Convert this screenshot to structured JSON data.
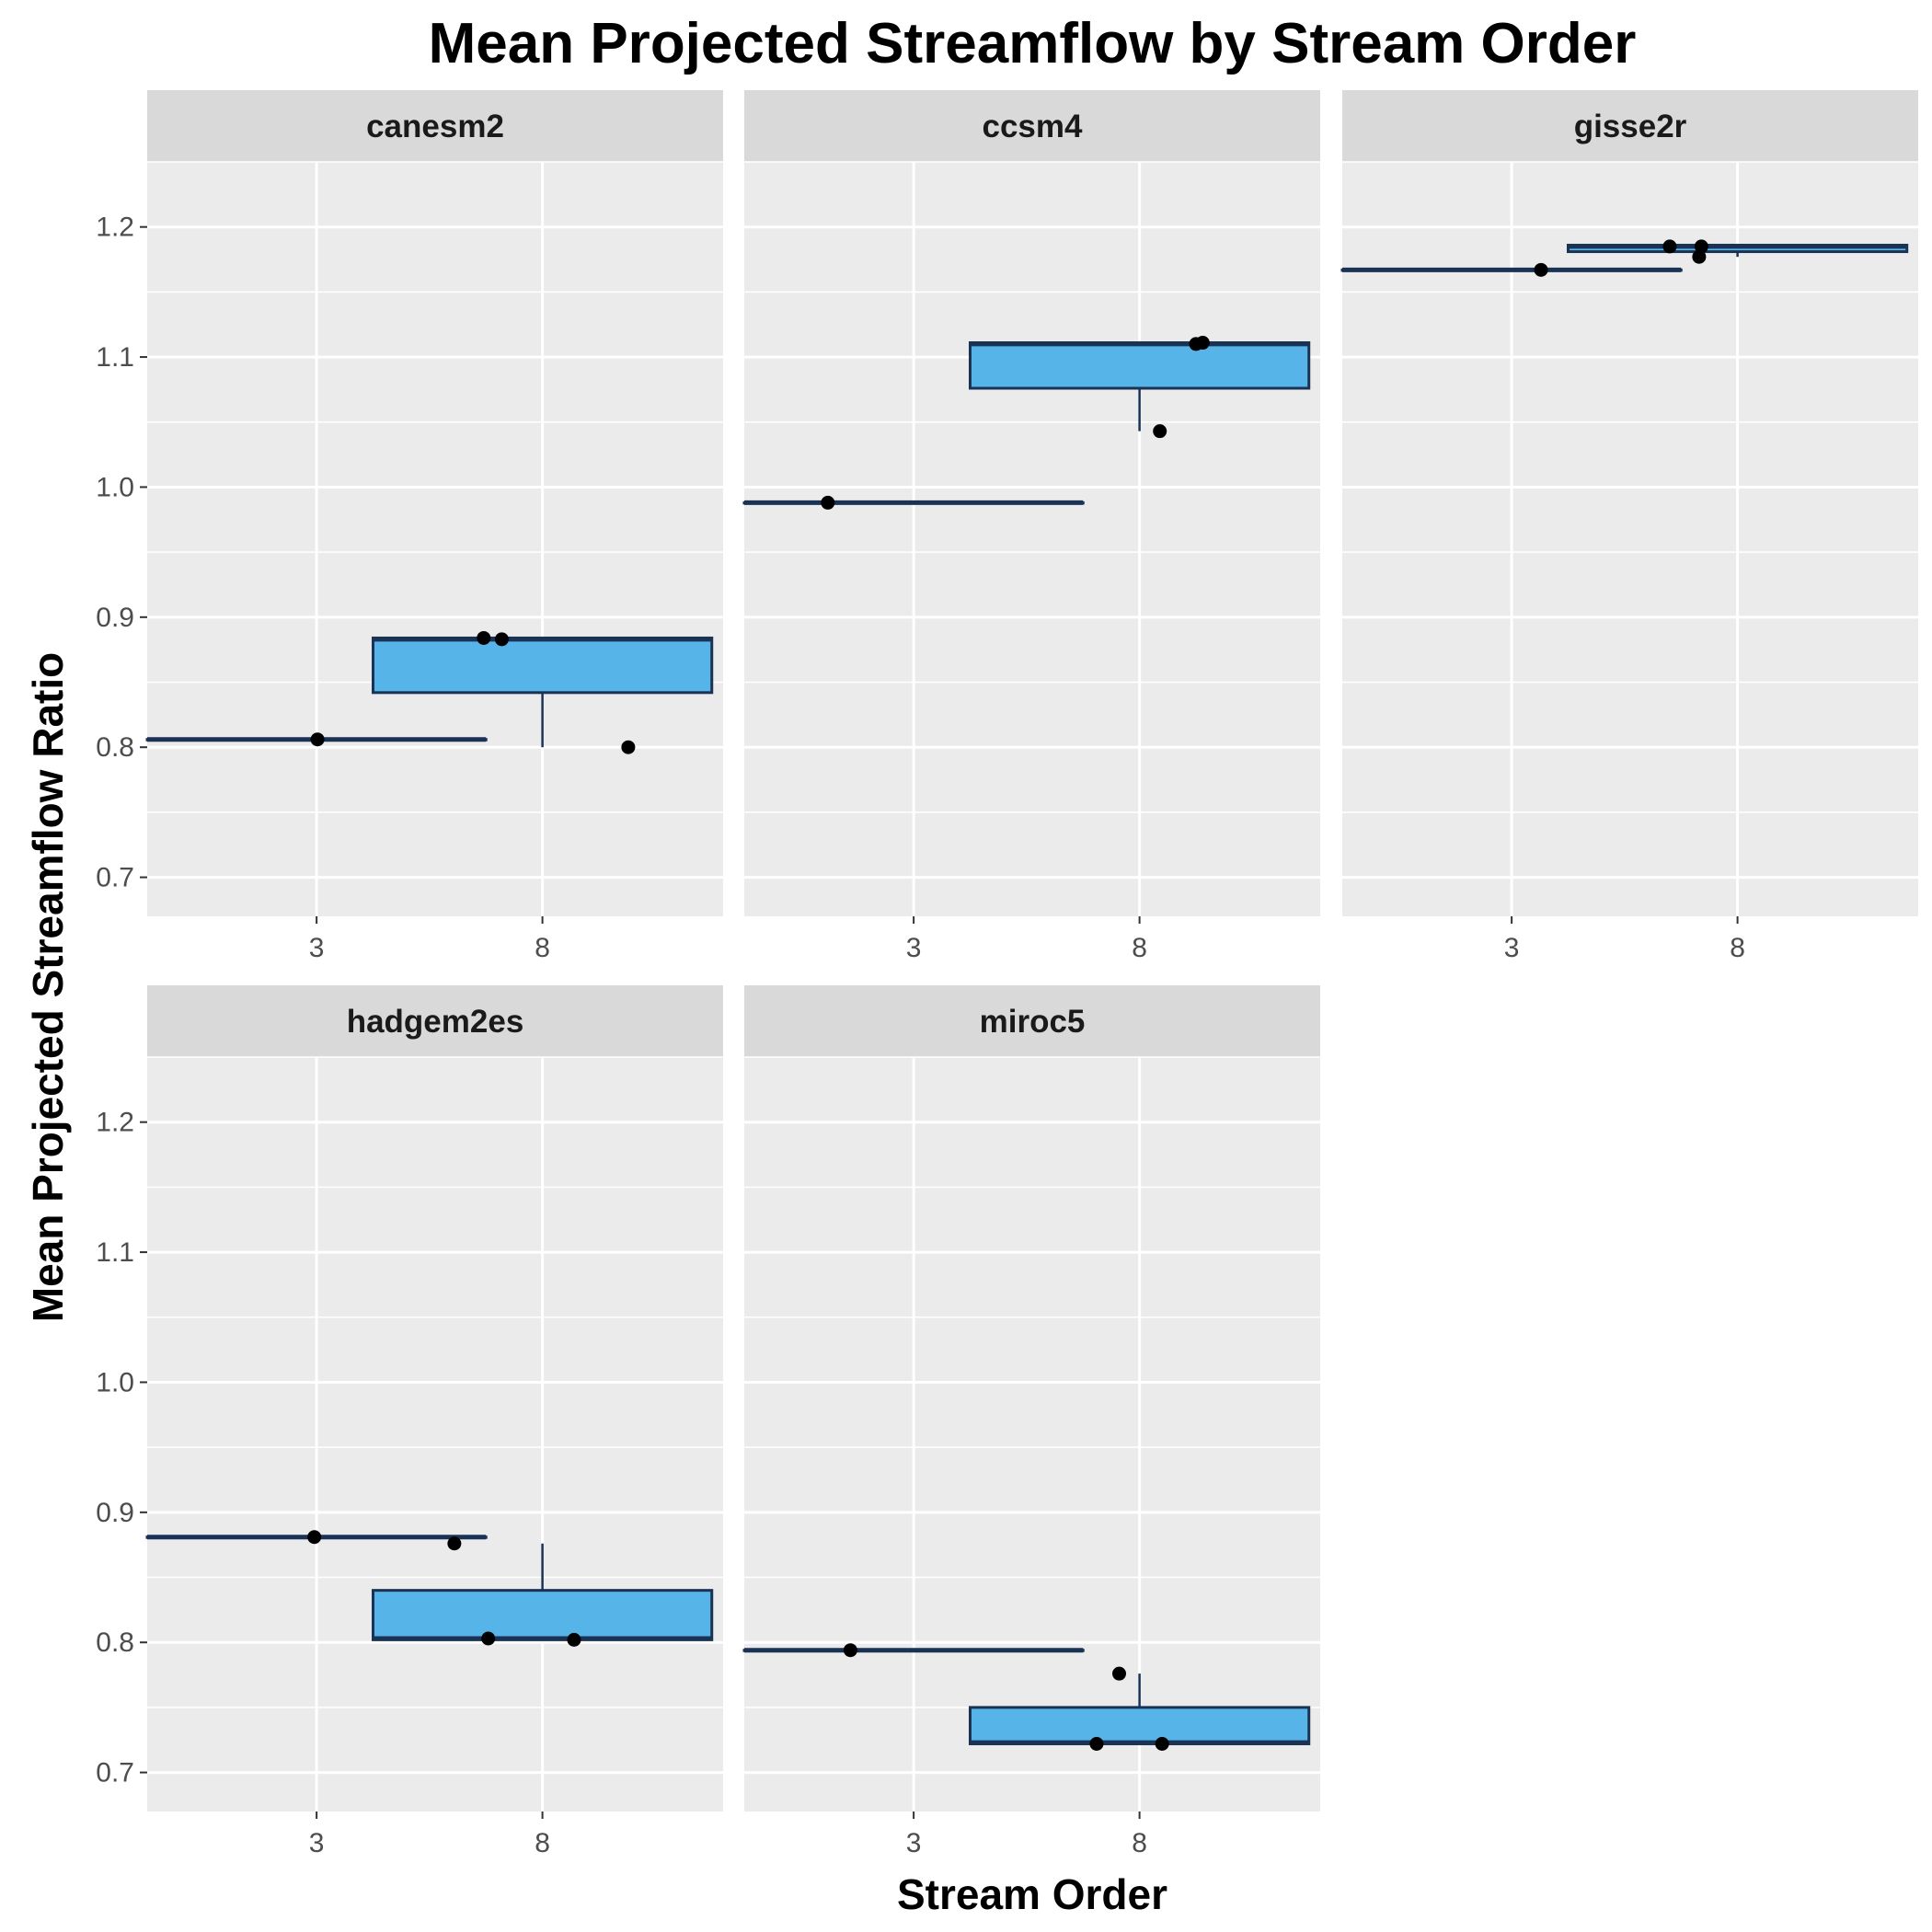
{
  "chart_data": {
    "type": "boxplot",
    "title": "Mean Projected Streamflow by Stream Order",
    "xlabel": "Stream Order",
    "ylabel": "Mean Projected Streamflow Ratio",
    "x_categories": [
      "3",
      "8"
    ],
    "ylim": [
      0.7,
      1.2
    ],
    "y_ticks": [
      "0.7",
      "0.8",
      "0.9",
      "1.0",
      "1.1",
      "1.2"
    ],
    "grid": true,
    "facet_layout": {
      "columns": 3,
      "rows": 2
    },
    "colors": {
      "box_fill": "#56B4E9",
      "box_line": "#1a3355",
      "point": "#000000",
      "panel_bg": "#ebebeb",
      "strip_bg": "#d9d9d9"
    },
    "panels": [
      {
        "name": "canesm2",
        "groups": [
          {
            "x": "3",
            "min": 0.806,
            "q1": 0.806,
            "median": 0.806,
            "q3": 0.806,
            "max": 0.806,
            "points": [
              {
                "x": 3.02,
                "y": 0.806
              }
            ]
          },
          {
            "x": "8",
            "min": 0.8,
            "q1": 0.842,
            "median": 0.883,
            "q3": 0.884,
            "max": 0.884,
            "points": [
              {
                "x": 6.7,
                "y": 0.884
              },
              {
                "x": 7.1,
                "y": 0.883
              },
              {
                "x": 9.9,
                "y": 0.8
              }
            ]
          }
        ]
      },
      {
        "name": "ccsm4",
        "groups": [
          {
            "x": "3",
            "min": 0.988,
            "q1": 0.988,
            "median": 0.988,
            "q3": 0.988,
            "max": 0.988,
            "points": [
              {
                "x": 1.1,
                "y": 0.988
              }
            ]
          },
          {
            "x": "8",
            "min": 1.043,
            "q1": 1.076,
            "median": 1.11,
            "q3": 1.111,
            "max": 1.111,
            "points": [
              {
                "x": 8.45,
                "y": 1.043
              },
              {
                "x": 9.25,
                "y": 1.11
              },
              {
                "x": 9.4,
                "y": 1.111
              }
            ]
          }
        ]
      },
      {
        "name": "gisse2r",
        "groups": [
          {
            "x": "3",
            "min": 1.167,
            "q1": 1.167,
            "median": 1.167,
            "q3": 1.167,
            "max": 1.167,
            "points": [
              {
                "x": 3.65,
                "y": 1.167
              }
            ]
          },
          {
            "x": "8",
            "min": 1.177,
            "q1": 1.181,
            "median": 1.185,
            "q3": 1.186,
            "max": 1.186,
            "points": [
              {
                "x": 6.5,
                "y": 1.185
              },
              {
                "x": 7.15,
                "y": 1.177
              },
              {
                "x": 7.2,
                "y": 1.185
              }
            ]
          }
        ]
      },
      {
        "name": "hadgem2es",
        "groups": [
          {
            "x": "3",
            "min": 0.881,
            "q1": 0.881,
            "median": 0.881,
            "q3": 0.881,
            "max": 0.881,
            "points": [
              {
                "x": 2.95,
                "y": 0.881
              }
            ]
          },
          {
            "x": "8",
            "min": 0.802,
            "q1": 0.802,
            "median": 0.803,
            "q3": 0.84,
            "max": 0.876,
            "points": [
              {
                "x": 6.05,
                "y": 0.876
              },
              {
                "x": 6.8,
                "y": 0.803
              },
              {
                "x": 8.7,
                "y": 0.802
              }
            ]
          }
        ]
      },
      {
        "name": "miroc5",
        "groups": [
          {
            "x": "3",
            "min": 0.794,
            "q1": 0.794,
            "median": 0.794,
            "q3": 0.794,
            "max": 0.794,
            "points": [
              {
                "x": 1.6,
                "y": 0.794
              }
            ]
          },
          {
            "x": "8",
            "min": 0.722,
            "q1": 0.722,
            "median": 0.723,
            "q3": 0.75,
            "max": 0.776,
            "points": [
              {
                "x": 7.05,
                "y": 0.722
              },
              {
                "x": 7.55,
                "y": 0.776
              },
              {
                "x": 8.5,
                "y": 0.722
              }
            ]
          }
        ]
      }
    ]
  }
}
